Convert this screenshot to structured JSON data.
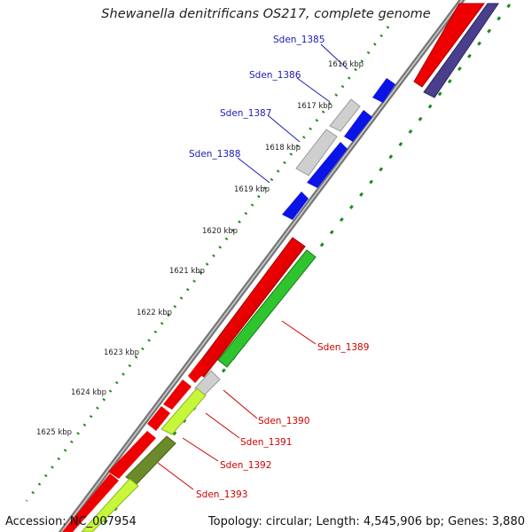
{
  "title": "Shewanella denitrificans OS217, complete genome",
  "accession": "Accession: NC_007954",
  "topology": "Topology: circular; Length: 4,545,906 bp; Genes: 3,880",
  "colors": {
    "backbone": "#7d7d7d",
    "red_gene": "#ee0000",
    "navy_gene": "#4a3f8c",
    "blue_gene": "#0a14e6",
    "gray_gene": "#cfcfcf",
    "green_gene": "#2ec42e",
    "lime_gene": "#c6f73a",
    "olive_gene": "#6b8a2a",
    "dots": "#1f8a1f",
    "label_blue": "#1a1ab5",
    "label_red": "#d00000"
  },
  "ticks": [
    "1616 kbp",
    "1617 kbp",
    "1618 kbp",
    "1619 kbp",
    "1620 kbp",
    "1621 kbp",
    "1622 kbp",
    "1623 kbp",
    "1624 kbp",
    "1625 kbp"
  ],
  "gene_labels": [
    "Sden_1385",
    "Sden_1386",
    "Sden_1387",
    "Sden_1388",
    "Sden_1389",
    "Sden_1390",
    "Sden_1391",
    "Sden_1392",
    "Sden_1393"
  ]
}
